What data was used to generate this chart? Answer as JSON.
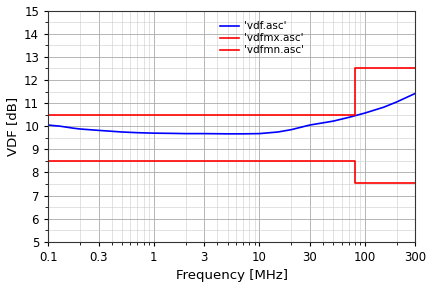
{
  "xlabel": "Frequency [MHz]",
  "ylabel": "VDF [dB]",
  "xlim": [
    0.1,
    300
  ],
  "ylim": [
    5,
    15
  ],
  "yticks": [
    5,
    6,
    7,
    8,
    9,
    10,
    11,
    12,
    13,
    14,
    15
  ],
  "xtick_values": [
    0.1,
    0.3,
    1,
    3,
    10,
    30,
    100,
    300
  ],
  "xtick_labels": [
    "0.1",
    "0.3",
    "1",
    "3",
    "10",
    "30",
    "100",
    "300"
  ],
  "legend_labels": [
    "'vdf.asc'",
    "'vdfmx.asc'",
    "'vdfmn.asc'"
  ],
  "blue_line": {
    "freq": [
      0.1,
      0.13,
      0.17,
      0.2,
      0.3,
      0.5,
      0.7,
      1.0,
      1.5,
      2.0,
      3.0,
      5.0,
      7.0,
      10.0,
      15.0,
      20.0,
      30.0,
      50.0,
      70.0,
      100.0,
      150.0,
      200.0,
      300.0
    ],
    "val": [
      10.05,
      10.0,
      9.92,
      9.88,
      9.82,
      9.75,
      9.72,
      9.7,
      9.69,
      9.68,
      9.68,
      9.67,
      9.67,
      9.68,
      9.75,
      9.85,
      10.05,
      10.22,
      10.38,
      10.57,
      10.82,
      11.05,
      11.42
    ]
  },
  "red_max_line": {
    "freq": [
      0.1,
      79.9,
      79.9,
      300.0
    ],
    "val": [
      10.5,
      10.5,
      12.5,
      12.5
    ]
  },
  "red_min_line": {
    "freq": [
      0.1,
      79.9,
      79.9,
      300.0
    ],
    "val": [
      8.5,
      8.5,
      7.55,
      7.55
    ]
  },
  "bg_color": "#ffffff",
  "grid_major_color": "#aaaaaa",
  "grid_minor_color": "#cccccc",
  "blue_color": "blue",
  "red_color": "red",
  "tick_fontsize": 8.5,
  "label_fontsize": 9.5
}
